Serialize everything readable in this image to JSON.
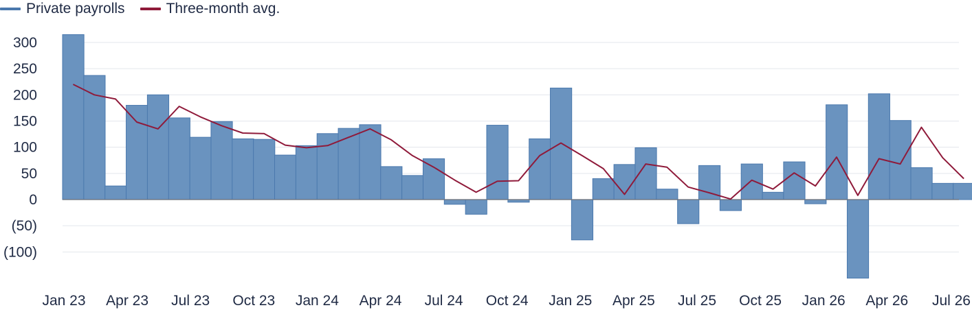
{
  "chart_data": {
    "type": "bar",
    "legend_placement": "top-left",
    "grid": true,
    "ylim": [
      -150,
      315
    ],
    "y_ticks": [
      {
        "value": 300,
        "label": "300"
      },
      {
        "value": 250,
        "label": "250"
      },
      {
        "value": 200,
        "label": "200"
      },
      {
        "value": 150,
        "label": "150"
      },
      {
        "value": 100,
        "label": "100"
      },
      {
        "value": 50,
        "label": "50"
      },
      {
        "value": 0,
        "label": "0"
      },
      {
        "value": -50,
        "label": "(50)"
      },
      {
        "value": -100,
        "label": "(100)"
      }
    ],
    "x_ticks": [
      "Jan 23",
      "Apr 23",
      "Jul 23",
      "Oct 23",
      "Jan 24",
      "Apr 24",
      "Jul 24",
      "Oct 24",
      "Jan 25",
      "Apr 25",
      "Jul 25",
      "Oct 25",
      "Jan 26",
      "Apr 26",
      "Jul 26"
    ],
    "categories": [
      "Jan 23",
      "Feb 23",
      "Mar 23",
      "Apr 23",
      "May 23",
      "Jun 23",
      "Jul 23",
      "Aug 23",
      "Sep 23",
      "Oct 23",
      "Nov 23",
      "Dec 23",
      "Jan 24",
      "Feb 24",
      "Mar 24",
      "Apr 24",
      "May 24",
      "Jun 24",
      "Jul 24",
      "Aug 24",
      "Sep 24",
      "Oct 24",
      "Nov 24",
      "Dec 24",
      "Jan 25",
      "Feb 25",
      "Mar 25",
      "Apr 25",
      "May 25",
      "Jun 25",
      "Jul 25",
      "Aug 25",
      "Sep 25",
      "Oct 25",
      "Nov 25",
      "Dec 25",
      "Jan 26",
      "Feb 26",
      "Mar 26",
      "Apr 26",
      "May 26",
      "Jun 26",
      "Jul 26"
    ],
    "series": [
      {
        "name": "Private payrolls",
        "kind": "bar",
        "color": "#6a93bf",
        "edge_color": "#4a78ad",
        "values": [
          315,
          237,
          26,
          180,
          200,
          156,
          119,
          149,
          116,
          115,
          85,
          103,
          126,
          136,
          143,
          63,
          46,
          78,
          -9,
          -28,
          142,
          -5,
          116,
          213,
          -77,
          40,
          67,
          99,
          20,
          -46,
          65,
          -21,
          68,
          14,
          72,
          -8,
          181,
          -150,
          202,
          151,
          61,
          31,
          31
        ]
      },
      {
        "name": "Three-month avg.",
        "kind": "line",
        "color": "#8f1a3a",
        "values": [
          220,
          200,
          192,
          148,
          135,
          178,
          158,
          141,
          127,
          126,
          104,
          99,
          103,
          119,
          135,
          114,
          84,
          62,
          37,
          14,
          35,
          36,
          84,
          108,
          84,
          59,
          10,
          68,
          62,
          24,
          13,
          1,
          37,
          20,
          51,
          26,
          81,
          8,
          78,
          68,
          138,
          80,
          40
        ]
      }
    ]
  }
}
